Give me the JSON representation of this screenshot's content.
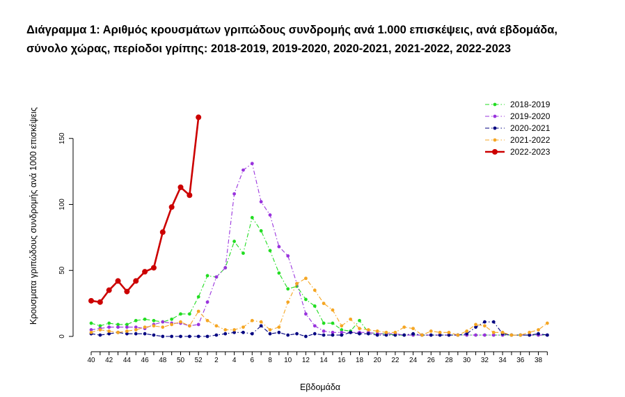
{
  "title_line1": "Διάγραμμα 1: Αριθμός κρουσμάτων γριπώδους συνδρομής ανά 1.000 επισκέψεις, ανά εβδομάδα,",
  "title_line2": "σύνολο χώρας, περίοδοι γρίπης: 2018-2019, 2019-2020, 2020-2021, 2021-2022, 2022-2023",
  "chart_data": {
    "type": "line",
    "xlabel": "Εβδομάδα",
    "ylabel": "Κρουσματα γριπώδους συνδρομής ανά 1000 επισκέψεις",
    "ylim": [
      0,
      175
    ],
    "y_ticks": [
      0,
      50,
      100,
      150
    ],
    "x_weeks": [
      40,
      41,
      42,
      43,
      44,
      45,
      46,
      47,
      48,
      49,
      50,
      51,
      52,
      1,
      2,
      3,
      4,
      5,
      6,
      7,
      8,
      9,
      10,
      11,
      12,
      13,
      14,
      15,
      16,
      17,
      18,
      19,
      20,
      21,
      22,
      23,
      24,
      25,
      26,
      27,
      28,
      29,
      30,
      31,
      32,
      33,
      34,
      35,
      36,
      37,
      38,
      39
    ],
    "x_tick_labels": [
      "40",
      "42",
      "44",
      "46",
      "48",
      "50",
      "52",
      "2",
      "4",
      "6",
      "8",
      "10",
      "12",
      "14",
      "16",
      "18",
      "20",
      "22",
      "24",
      "26",
      "28",
      "30",
      "32",
      "34",
      "36",
      "38"
    ],
    "legend_position": "top-right",
    "series": [
      {
        "name": "2018-2019",
        "color": "#22dd22",
        "line_style": "dashdot",
        "marker": "dot",
        "values": [
          10,
          8,
          10,
          9,
          9,
          12,
          13,
          12,
          11,
          13,
          17,
          17,
          30,
          46,
          45,
          52,
          72,
          63,
          90,
          80,
          65,
          48,
          36,
          38,
          28,
          23,
          10,
          10,
          5,
          4,
          12,
          3,
          2,
          2,
          1,
          1,
          1,
          1,
          1,
          1,
          1,
          1,
          1,
          1,
          1,
          1,
          1,
          1,
          1,
          1,
          1,
          1
        ]
      },
      {
        "name": "2019-2020",
        "color": "#9933dd",
        "line_style": "dashdot",
        "marker": "dot",
        "values": [
          5,
          6,
          7,
          7,
          7,
          7,
          6,
          9,
          11,
          10,
          10,
          8,
          9,
          26,
          45,
          52,
          108,
          126,
          131,
          102,
          92,
          68,
          61,
          40,
          17,
          8,
          4,
          3,
          3,
          3,
          3,
          3,
          2,
          2,
          2,
          1,
          1,
          1,
          1,
          1,
          1,
          1,
          1,
          1,
          1,
          1,
          1,
          1,
          1,
          1,
          1,
          1
        ]
      },
      {
        "name": "2020-2021",
        "color": "#000080",
        "line_style": "dashdot",
        "marker": "dot",
        "values": [
          2,
          1,
          2,
          3,
          2,
          2,
          2,
          1,
          0,
          0,
          0,
          0,
          0,
          0,
          1,
          2,
          3,
          3,
          2,
          8,
          2,
          3,
          1,
          2,
          0,
          2,
          1,
          1,
          1,
          3,
          2,
          2,
          1,
          1,
          1,
          1,
          2,
          1,
          1,
          1,
          1,
          1,
          2,
          7,
          11,
          11,
          2,
          1,
          1,
          1,
          2,
          1
        ]
      },
      {
        "name": "2021-2022",
        "color": "#f5a623",
        "line_style": "dashdot",
        "marker": "dot",
        "values": [
          3,
          5,
          4,
          3,
          4,
          5,
          7,
          8,
          7,
          9,
          11,
          8,
          19,
          12,
          8,
          5,
          5,
          7,
          12,
          11,
          5,
          7,
          26,
          40,
          44,
          35,
          25,
          20,
          8,
          13,
          6,
          5,
          4,
          3,
          3,
          7,
          6,
          1,
          4,
          3,
          3,
          1,
          4,
          9,
          8,
          3,
          3,
          1,
          1,
          3,
          5,
          10
        ]
      },
      {
        "name": "2022-2023",
        "color": "#cc0000",
        "line_style": "solid",
        "marker": "dot",
        "values": [
          27,
          26,
          35,
          42,
          34,
          42,
          49,
          52,
          79,
          98,
          113,
          107,
          166
        ]
      }
    ]
  }
}
